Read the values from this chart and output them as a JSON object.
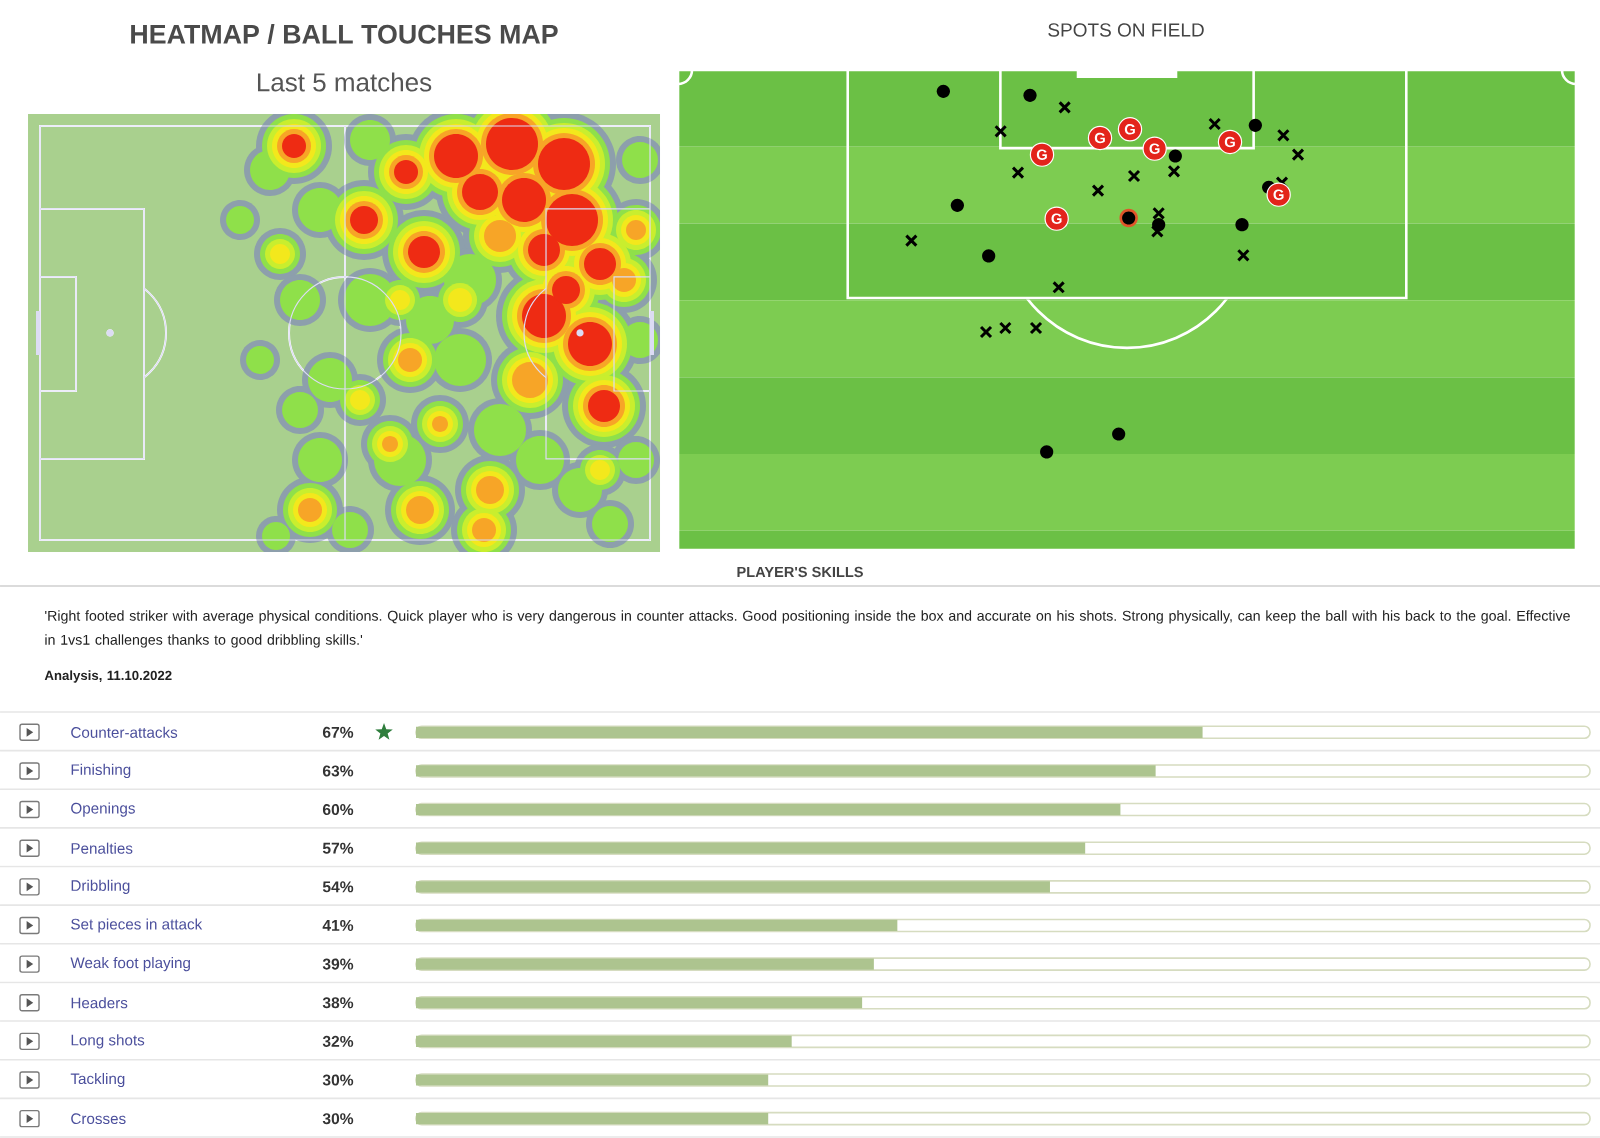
{
  "chart_data": [
    {
      "type": "other",
      "title": "HEATMAP / BALL TOUCHES MAP",
      "subtitle": "Last 5 matches"
    },
    {
      "type": "other",
      "title": "SPOTS ON FIELD",
      "annotations": [
        "G",
        "G",
        "G",
        "G",
        "G",
        "G",
        "G"
      ]
    },
    {
      "type": "bar",
      "orientation": "horizontal",
      "title": "PLAYER'S SKILLS",
      "annotations": [
        "'Right footed striker with average physical conditions. Quick player who is very dangerous in counter attacks. Good positioning inside the box and accurate on his shots. Strong physically, can keep the ball with his back to the goal. Effective in 1vs1 challenges thanks to good dribbling skills.'",
        "Analysis, 11.10.2022"
      ],
      "categories": [
        "Counter-attacks",
        "Finishing",
        "Openings",
        "Penalties",
        "Dribbling",
        "Set pieces in attack",
        "Weak foot playing",
        "Headers",
        "Long shots",
        "Tackling",
        "Crosses"
      ],
      "values": [
        67,
        63,
        60,
        57,
        54,
        41,
        39,
        38,
        32,
        30,
        30
      ],
      "value_labels": [
        "67%",
        "63%",
        "60%",
        "57%",
        "54%",
        "41%",
        "39%",
        "38%",
        "32%",
        "30%",
        "30%"
      ],
      "color": "#adc48f",
      "xlim": [
        0,
        100
      ],
      "tick_labels": "y"
    }
  ]
}
